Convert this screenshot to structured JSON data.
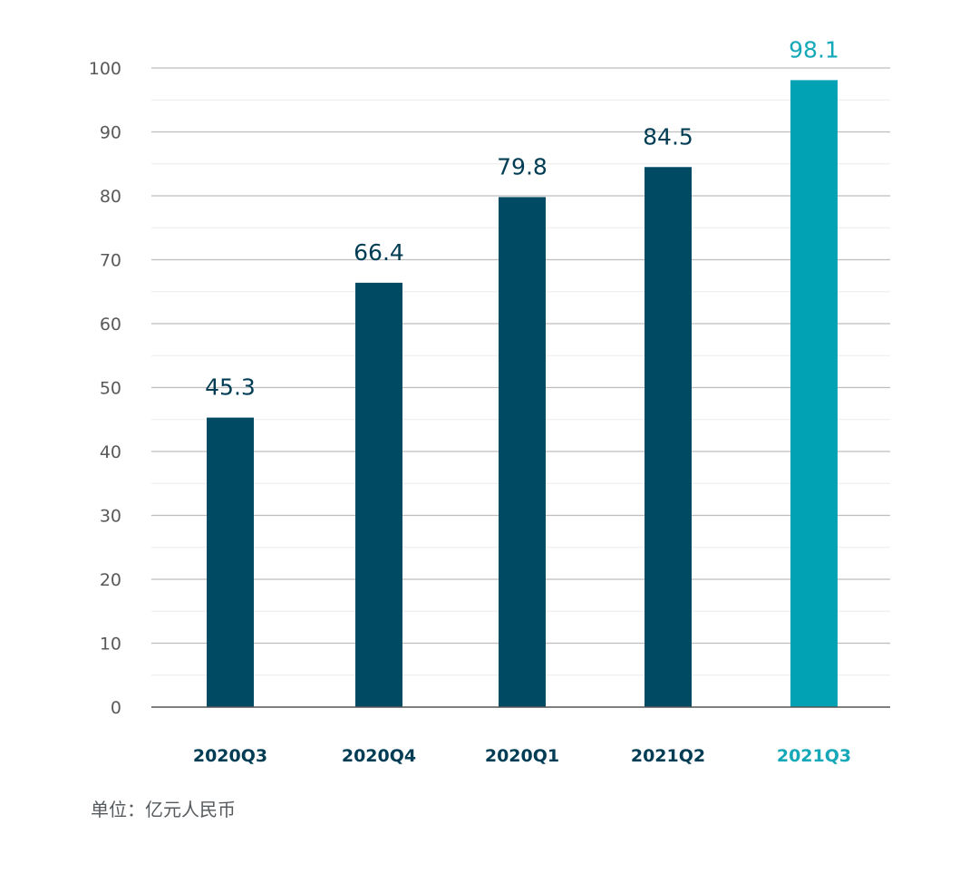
{
  "chart_data": {
    "type": "bar",
    "categories": [
      "2020Q3",
      "2020Q4",
      "2020Q1",
      "2021Q2",
      "2021Q3"
    ],
    "values": [
      45.3,
      66.4,
      79.8,
      84.5,
      98.1
    ],
    "data_labels": [
      "45.3",
      "66.4",
      "79.8",
      "84.5",
      "98.1"
    ],
    "ylim": [
      0,
      100
    ],
    "yticks": [
      0,
      10,
      20,
      30,
      40,
      50,
      60,
      70,
      80,
      90,
      100
    ],
    "ytick_labels": [
      "0",
      "10",
      "20",
      "30",
      "40",
      "50",
      "60",
      "70",
      "80",
      "90",
      "100"
    ],
    "grid": true,
    "legend": "none",
    "colors": {
      "default_bar": "#004a63",
      "highlight_bar": "#00a2b3",
      "default_label": "#003d55",
      "highlight_label": "#14a8b8",
      "grid_major": "#bdbdbd",
      "grid_minor": "#ececec",
      "axis_line": "#555555",
      "tick_label": "#595959"
    },
    "highlight_index": 4
  },
  "note": {
    "unit": "单位：亿元人民币"
  }
}
